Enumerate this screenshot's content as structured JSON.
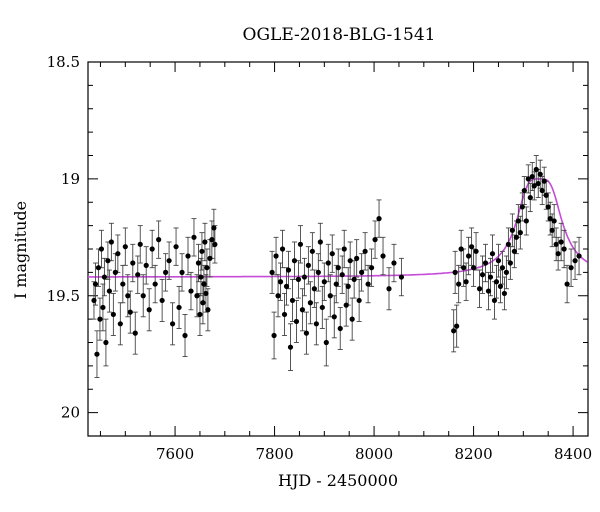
{
  "chart_data": {
    "type": "scatter",
    "title": "OGLE-2018-BLG-1541",
    "xlabel": "HJD - 2450000",
    "ylabel": "I magnitude",
    "xlim": [
      7425,
      8430
    ],
    "ylim": [
      20.1,
      18.5
    ],
    "y_inverted": true,
    "x_ticks": [
      7600,
      7800,
      8000,
      8200,
      8400
    ],
    "y_ticks": [
      18.5,
      19,
      19.5,
      20
    ],
    "y_tick_labels": [
      "18.5",
      "19",
      "19.5",
      "20"
    ],
    "grid": false,
    "colors": {
      "data": "#000000",
      "model": "#c54bd8"
    },
    "series": [
      {
        "kind": "points_with_errorbars",
        "points": [
          [
            7437,
            19.52,
            0.08
          ],
          [
            7440,
            19.45,
            0.09
          ],
          [
            7443,
            19.75,
            0.1
          ],
          [
            7446,
            19.38,
            0.08
          ],
          [
            7449,
            19.6,
            0.09
          ],
          [
            7452,
            19.3,
            0.08
          ],
          [
            7455,
            19.55,
            0.1
          ],
          [
            7458,
            19.42,
            0.08
          ],
          [
            7461,
            19.7,
            0.1
          ],
          [
            7465,
            19.35,
            0.08
          ],
          [
            7468,
            19.48,
            0.09
          ],
          [
            7472,
            19.27,
            0.08
          ],
          [
            7476,
            19.58,
            0.09
          ],
          [
            7480,
            19.4,
            0.08
          ],
          [
            7485,
            19.32,
            0.08
          ],
          [
            7490,
            19.62,
            0.09
          ],
          [
            7495,
            19.45,
            0.08
          ],
          [
            7500,
            19.29,
            0.08
          ],
          [
            7505,
            19.5,
            0.09
          ],
          [
            7510,
            19.57,
            0.09
          ],
          [
            7515,
            19.36,
            0.08
          ],
          [
            7520,
            19.66,
            0.09
          ],
          [
            7525,
            19.41,
            0.08
          ],
          [
            7530,
            19.28,
            0.08
          ],
          [
            7536,
            19.5,
            0.09
          ],
          [
            7542,
            19.37,
            0.08
          ],
          [
            7548,
            19.56,
            0.09
          ],
          [
            7554,
            19.3,
            0.08
          ],
          [
            7560,
            19.45,
            0.08
          ],
          [
            7567,
            19.26,
            0.08
          ],
          [
            7574,
            19.52,
            0.09
          ],
          [
            7581,
            19.4,
            0.08
          ],
          [
            7588,
            19.35,
            0.08
          ],
          [
            7595,
            19.62,
            0.09
          ],
          [
            7602,
            19.29,
            0.08
          ],
          [
            7608,
            19.55,
            0.09
          ],
          [
            7614,
            19.4,
            0.08
          ],
          [
            7620,
            19.67,
            0.09
          ],
          [
            7626,
            19.33,
            0.08
          ],
          [
            7632,
            19.48,
            0.08
          ],
          [
            7638,
            19.25,
            0.08
          ],
          [
            7644,
            19.5,
            0.09
          ],
          [
            7647,
            19.36,
            0.08
          ],
          [
            7650,
            19.58,
            0.09
          ],
          [
            7652,
            19.42,
            0.08
          ],
          [
            7654,
            19.31,
            0.08
          ],
          [
            7656,
            19.53,
            0.09
          ],
          [
            7658,
            19.45,
            0.08
          ],
          [
            7660,
            19.27,
            0.08
          ],
          [
            7662,
            19.49,
            0.08
          ],
          [
            7664,
            19.38,
            0.08
          ],
          [
            7666,
            19.56,
            0.09
          ],
          [
            7670,
            19.34,
            0.08
          ],
          [
            7674,
            19.26,
            0.08
          ],
          [
            7678,
            19.21,
            0.08
          ],
          [
            7680,
            19.28,
            0.08
          ],
          [
            7795,
            19.4,
            0.09
          ],
          [
            7799,
            19.67,
            0.1
          ],
          [
            7803,
            19.33,
            0.08
          ],
          [
            7807,
            19.5,
            0.09
          ],
          [
            7812,
            19.44,
            0.08
          ],
          [
            7816,
            19.3,
            0.08
          ],
          [
            7820,
            19.58,
            0.09
          ],
          [
            7824,
            19.46,
            0.08
          ],
          [
            7828,
            19.39,
            0.08
          ],
          [
            7832,
            19.72,
            0.1
          ],
          [
            7836,
            19.52,
            0.09
          ],
          [
            7840,
            19.35,
            0.08
          ],
          [
            7844,
            19.61,
            0.09
          ],
          [
            7848,
            19.43,
            0.08
          ],
          [
            7852,
            19.28,
            0.08
          ],
          [
            7856,
            19.56,
            0.09
          ],
          [
            7860,
            19.42,
            0.08
          ],
          [
            7864,
            19.66,
            0.09
          ],
          [
            7868,
            19.37,
            0.08
          ],
          [
            7872,
            19.53,
            0.09
          ],
          [
            7876,
            19.31,
            0.08
          ],
          [
            7880,
            19.47,
            0.08
          ],
          [
            7884,
            19.62,
            0.09
          ],
          [
            7888,
            19.4,
            0.08
          ],
          [
            7892,
            19.27,
            0.08
          ],
          [
            7896,
            19.55,
            0.09
          ],
          [
            7900,
            19.44,
            0.08
          ],
          [
            7904,
            19.7,
            0.1
          ],
          [
            7908,
            19.36,
            0.08
          ],
          [
            7912,
            19.5,
            0.09
          ],
          [
            7916,
            19.32,
            0.08
          ],
          [
            7920,
            19.59,
            0.09
          ],
          [
            7924,
            19.45,
            0.08
          ],
          [
            7928,
            19.38,
            0.08
          ],
          [
            7932,
            19.64,
            0.09
          ],
          [
            7936,
            19.41,
            0.08
          ],
          [
            7940,
            19.3,
            0.08
          ],
          [
            7944,
            19.54,
            0.09
          ],
          [
            7948,
            19.46,
            0.08
          ],
          [
            7952,
            19.35,
            0.08
          ],
          [
            7956,
            19.6,
            0.09
          ],
          [
            7960,
            19.43,
            0.08
          ],
          [
            7965,
            19.34,
            0.08
          ],
          [
            7970,
            19.52,
            0.09
          ],
          [
            7975,
            19.4,
            0.08
          ],
          [
            7982,
            19.31,
            0.08
          ],
          [
            7988,
            19.45,
            0.08
          ],
          [
            7995,
            19.38,
            0.08
          ],
          [
            8002,
            19.26,
            0.08
          ],
          [
            8010,
            19.17,
            0.08
          ],
          [
            8018,
            19.33,
            0.08
          ],
          [
            8030,
            19.47,
            0.09
          ],
          [
            8040,
            19.36,
            0.08
          ],
          [
            8055,
            19.42,
            0.08
          ],
          [
            8160,
            19.65,
            0.09
          ],
          [
            8163,
            19.4,
            0.09
          ],
          [
            8166,
            19.63,
            0.09
          ],
          [
            8170,
            19.45,
            0.08
          ],
          [
            8175,
            19.3,
            0.08
          ],
          [
            8180,
            19.38,
            0.08
          ],
          [
            8185,
            19.44,
            0.08
          ],
          [
            8190,
            19.33,
            0.08
          ],
          [
            8196,
            19.29,
            0.08
          ],
          [
            8200,
            19.38,
            0.08
          ],
          [
            8205,
            19.31,
            0.08
          ],
          [
            8212,
            19.47,
            0.08
          ],
          [
            8218,
            19.41,
            0.08
          ],
          [
            8224,
            19.36,
            0.08
          ],
          [
            8230,
            19.48,
            0.08
          ],
          [
            8234,
            19.42,
            0.08
          ],
          [
            8238,
            19.32,
            0.08
          ],
          [
            8242,
            19.52,
            0.08
          ],
          [
            8246,
            19.44,
            0.07
          ],
          [
            8250,
            19.35,
            0.07
          ],
          [
            8254,
            19.46,
            0.07
          ],
          [
            8258,
            19.38,
            0.07
          ],
          [
            8262,
            19.49,
            0.07
          ],
          [
            8266,
            19.4,
            0.07
          ],
          [
            8270,
            19.28,
            0.07
          ],
          [
            8274,
            19.36,
            0.07
          ],
          [
            8278,
            19.22,
            0.07
          ],
          [
            8282,
            19.31,
            0.07
          ],
          [
            8286,
            19.25,
            0.07
          ],
          [
            8290,
            19.18,
            0.07
          ],
          [
            8294,
            19.23,
            0.07
          ],
          [
            8298,
            19.12,
            0.06
          ],
          [
            8302,
            19.05,
            0.06
          ],
          [
            8306,
            19.18,
            0.06
          ],
          [
            8310,
            19.0,
            0.06
          ],
          [
            8314,
            19.08,
            0.06
          ],
          [
            8318,
            18.99,
            0.06
          ],
          [
            8322,
            19.03,
            0.06
          ],
          [
            8326,
            18.96,
            0.06
          ],
          [
            8330,
            19.02,
            0.06
          ],
          [
            8334,
            18.98,
            0.06
          ],
          [
            8338,
            19.05,
            0.06
          ],
          [
            8342,
            19.01,
            0.06
          ],
          [
            8346,
            19.07,
            0.06
          ],
          [
            8350,
            19.12,
            0.06
          ],
          [
            8354,
            19.17,
            0.07
          ],
          [
            8358,
            19.22,
            0.07
          ],
          [
            8362,
            19.18,
            0.07
          ],
          [
            8366,
            19.28,
            0.07
          ],
          [
            8370,
            19.32,
            0.07
          ],
          [
            8376,
            19.27,
            0.08
          ],
          [
            8382,
            19.3,
            0.08
          ],
          [
            8388,
            19.45,
            0.08
          ],
          [
            8396,
            19.38,
            0.08
          ],
          [
            8404,
            19.35,
            0.08
          ],
          [
            8412,
            19.33,
            0.08
          ]
        ]
      },
      {
        "kind": "model_curve",
        "model": {
          "baseline": 19.42,
          "peak_mag": 19.0,
          "t_peak": 8332,
          "t_eff": 27
        }
      }
    ]
  }
}
